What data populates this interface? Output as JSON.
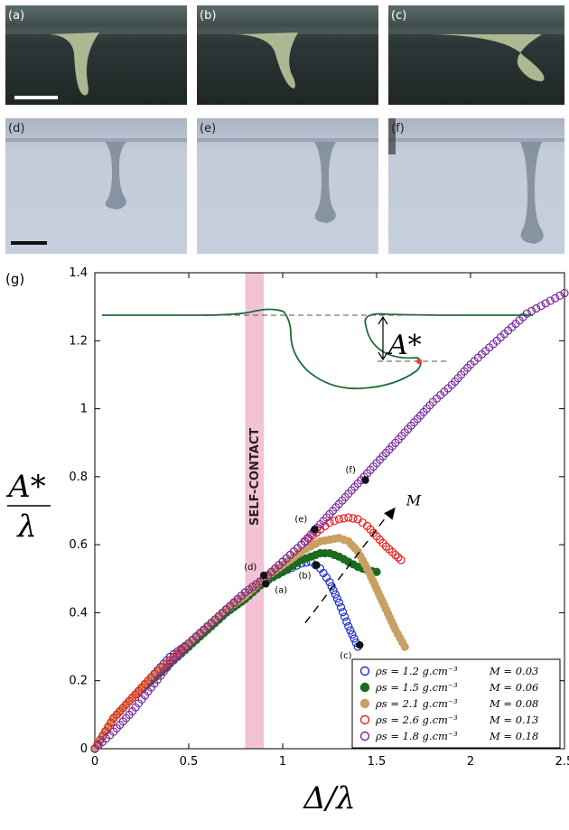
{
  "photos": {
    "top_row": [
      {
        "label": "(a)"
      },
      {
        "label": "(b)"
      },
      {
        "label": "(c)"
      }
    ],
    "bottom_row": [
      {
        "label": "(d)"
      },
      {
        "label": "(e)"
      },
      {
        "label": "(f)"
      }
    ]
  },
  "panel_label": "(g)",
  "self_contact_label": "SELF-CONTACT",
  "inset_label": "A*",
  "colors": {
    "self_contact_band": "#f4c2d6",
    "inset_curve": "#1b6b35",
    "inset_marker": "#e0442a"
  },
  "chart_data": {
    "type": "scatter",
    "xlabel": "Δ/λ",
    "ylabel": "A*/λ",
    "xlim": [
      0,
      2.5
    ],
    "ylim": [
      0,
      1.4
    ],
    "xticks": [
      "0",
      "0.5",
      "1",
      "1.5",
      "2",
      "2.5"
    ],
    "yticks": [
      "0",
      "0.2",
      "0.4",
      "0.6",
      "0.8",
      "1",
      "1.2",
      "1.4"
    ],
    "self_contact_band": [
      0.8,
      0.9
    ],
    "arrow_label": "M",
    "legend_position": "bottom-right",
    "series": [
      {
        "name": "ρs = 1.2 g.cm⁻³",
        "m_label": "M = 0.03",
        "color": "#1f2fc9",
        "filled": false,
        "x": [
          0,
          0.1,
          0.2,
          0.3,
          0.4,
          0.5,
          0.6,
          0.7,
          0.8,
          0.9,
          1.0,
          1.1,
          1.15,
          1.2,
          1.25,
          1.3,
          1.35,
          1.4
        ],
        "y": [
          0,
          0.09,
          0.15,
          0.21,
          0.27,
          0.31,
          0.36,
          0.41,
          0.45,
          0.49,
          0.52,
          0.545,
          0.55,
          0.53,
          0.49,
          0.43,
          0.36,
          0.3
        ]
      },
      {
        "name": "ρs = 1.5 g.cm⁻³",
        "m_label": "M = 0.06",
        "color": "#1b6b1f",
        "filled": true,
        "x": [
          0,
          0.1,
          0.2,
          0.3,
          0.4,
          0.5,
          0.6,
          0.7,
          0.8,
          0.9,
          1.0,
          1.1,
          1.15,
          1.2,
          1.25,
          1.3,
          1.35,
          1.4,
          1.45,
          1.5
        ],
        "y": [
          0,
          0.09,
          0.15,
          0.2,
          0.25,
          0.3,
          0.35,
          0.4,
          0.44,
          0.49,
          0.52,
          0.555,
          0.565,
          0.575,
          0.575,
          0.565,
          0.55,
          0.535,
          0.525,
          0.52
        ]
      },
      {
        "name": "ρs = 2.1 g.cm⁻³",
        "m_label": "M = 0.08",
        "color": "#c9a063",
        "filled": true,
        "x": [
          0,
          0.1,
          0.2,
          0.3,
          0.4,
          0.5,
          0.6,
          0.7,
          0.8,
          0.9,
          1.0,
          1.1,
          1.2,
          1.3,
          1.35,
          1.4,
          1.45,
          1.5,
          1.55,
          1.6,
          1.65
        ],
        "y": [
          0,
          0.09,
          0.15,
          0.21,
          0.26,
          0.31,
          0.36,
          0.41,
          0.45,
          0.5,
          0.54,
          0.58,
          0.61,
          0.62,
          0.61,
          0.58,
          0.53,
          0.47,
          0.41,
          0.35,
          0.3
        ]
      },
      {
        "name": "ρs = 2.6 g.cm⁻³",
        "m_label": "M = 0.13",
        "color": "#e8201f",
        "filled": false,
        "x": [
          0,
          0.1,
          0.2,
          0.3,
          0.4,
          0.5,
          0.6,
          0.7,
          0.8,
          0.9,
          1.0,
          1.1,
          1.2,
          1.25,
          1.3,
          1.35,
          1.4,
          1.45,
          1.5,
          1.55,
          1.6,
          1.63
        ],
        "y": [
          0,
          0.09,
          0.15,
          0.21,
          0.26,
          0.31,
          0.36,
          0.41,
          0.46,
          0.5,
          0.55,
          0.6,
          0.645,
          0.665,
          0.675,
          0.68,
          0.675,
          0.655,
          0.625,
          0.595,
          0.57,
          0.555
        ]
      },
      {
        "name": "ρs = 1.8 g.cm⁻³",
        "m_label": "M = 0.18",
        "color": "#7a2a9e",
        "filled": false,
        "x": [
          0,
          0.1,
          0.2,
          0.3,
          0.4,
          0.5,
          0.6,
          0.7,
          0.8,
          0.9,
          1.0,
          1.1,
          1.2,
          1.3,
          1.4,
          1.5,
          1.6,
          1.7,
          1.8,
          1.9,
          2.0,
          2.1,
          2.2,
          2.3,
          2.4,
          2.5
        ],
        "y": [
          0,
          0.05,
          0.11,
          0.18,
          0.25,
          0.31,
          0.36,
          0.41,
          0.46,
          0.5,
          0.55,
          0.6,
          0.66,
          0.72,
          0.78,
          0.84,
          0.9,
          0.96,
          1.02,
          1.07,
          1.13,
          1.18,
          1.23,
          1.28,
          1.31,
          1.34
        ]
      }
    ],
    "annotations": [
      {
        "label": "(a)",
        "x": 0.91,
        "y": 0.485
      },
      {
        "label": "(b)",
        "x": 1.18,
        "y": 0.54
      },
      {
        "label": "(c)",
        "x": 1.41,
        "y": 0.305
      },
      {
        "label": "(d)",
        "x": 0.9,
        "y": 0.51
      },
      {
        "label": "(e)",
        "x": 1.17,
        "y": 0.645
      },
      {
        "label": "(f)",
        "x": 1.44,
        "y": 0.79
      }
    ]
  }
}
